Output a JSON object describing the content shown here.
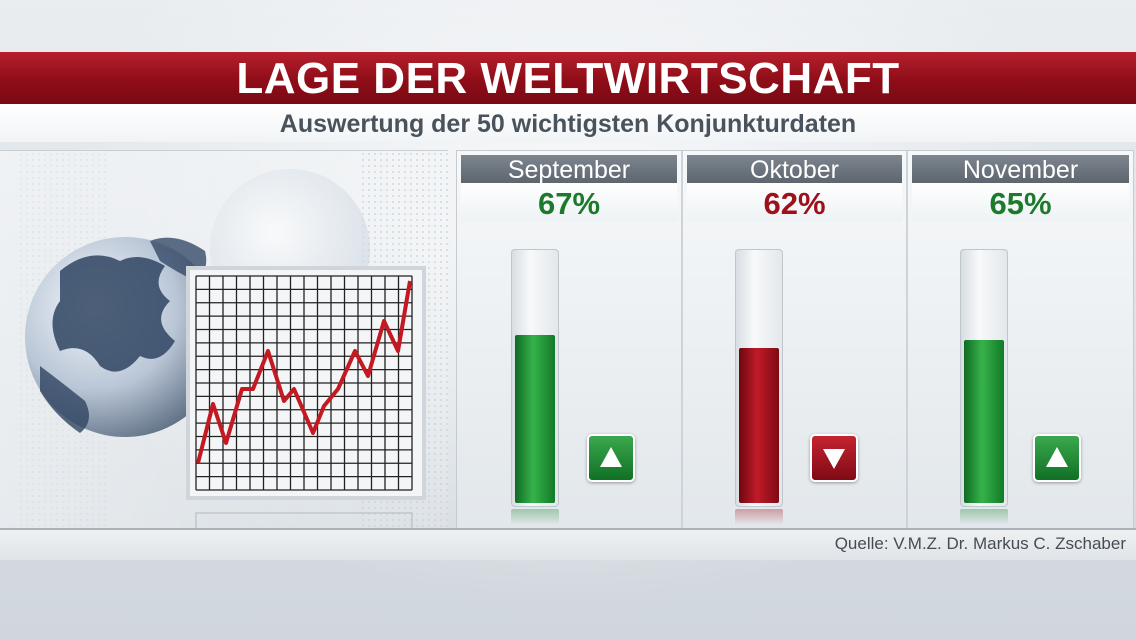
{
  "header": {
    "title": "LAGE DER WELTWIRTSCHAFT",
    "subtitle": "Auswertung der 50 wichtigsten Konjunkturdaten"
  },
  "illustration": {
    "globe_icon": "globe-icon",
    "rising_chart_icon": "rising-line-chart-icon"
  },
  "chart_data": {
    "type": "bar",
    "categories": [
      "September",
      "Oktober",
      "November"
    ],
    "values": [
      67,
      62,
      65
    ],
    "value_labels": [
      "67%",
      "62%",
      "65%"
    ],
    "unit": "%",
    "ylim": [
      0,
      100
    ],
    "trend": [
      "up",
      "down",
      "up"
    ],
    "colors": {
      "up": "#1f8a33",
      "down": "#a3121e",
      "label_up": "#1d7a2c",
      "label_down": "#9c111c"
    }
  },
  "footer": {
    "source": "Quelle: V.M.Z. Dr. Markus C. Zschaber"
  }
}
